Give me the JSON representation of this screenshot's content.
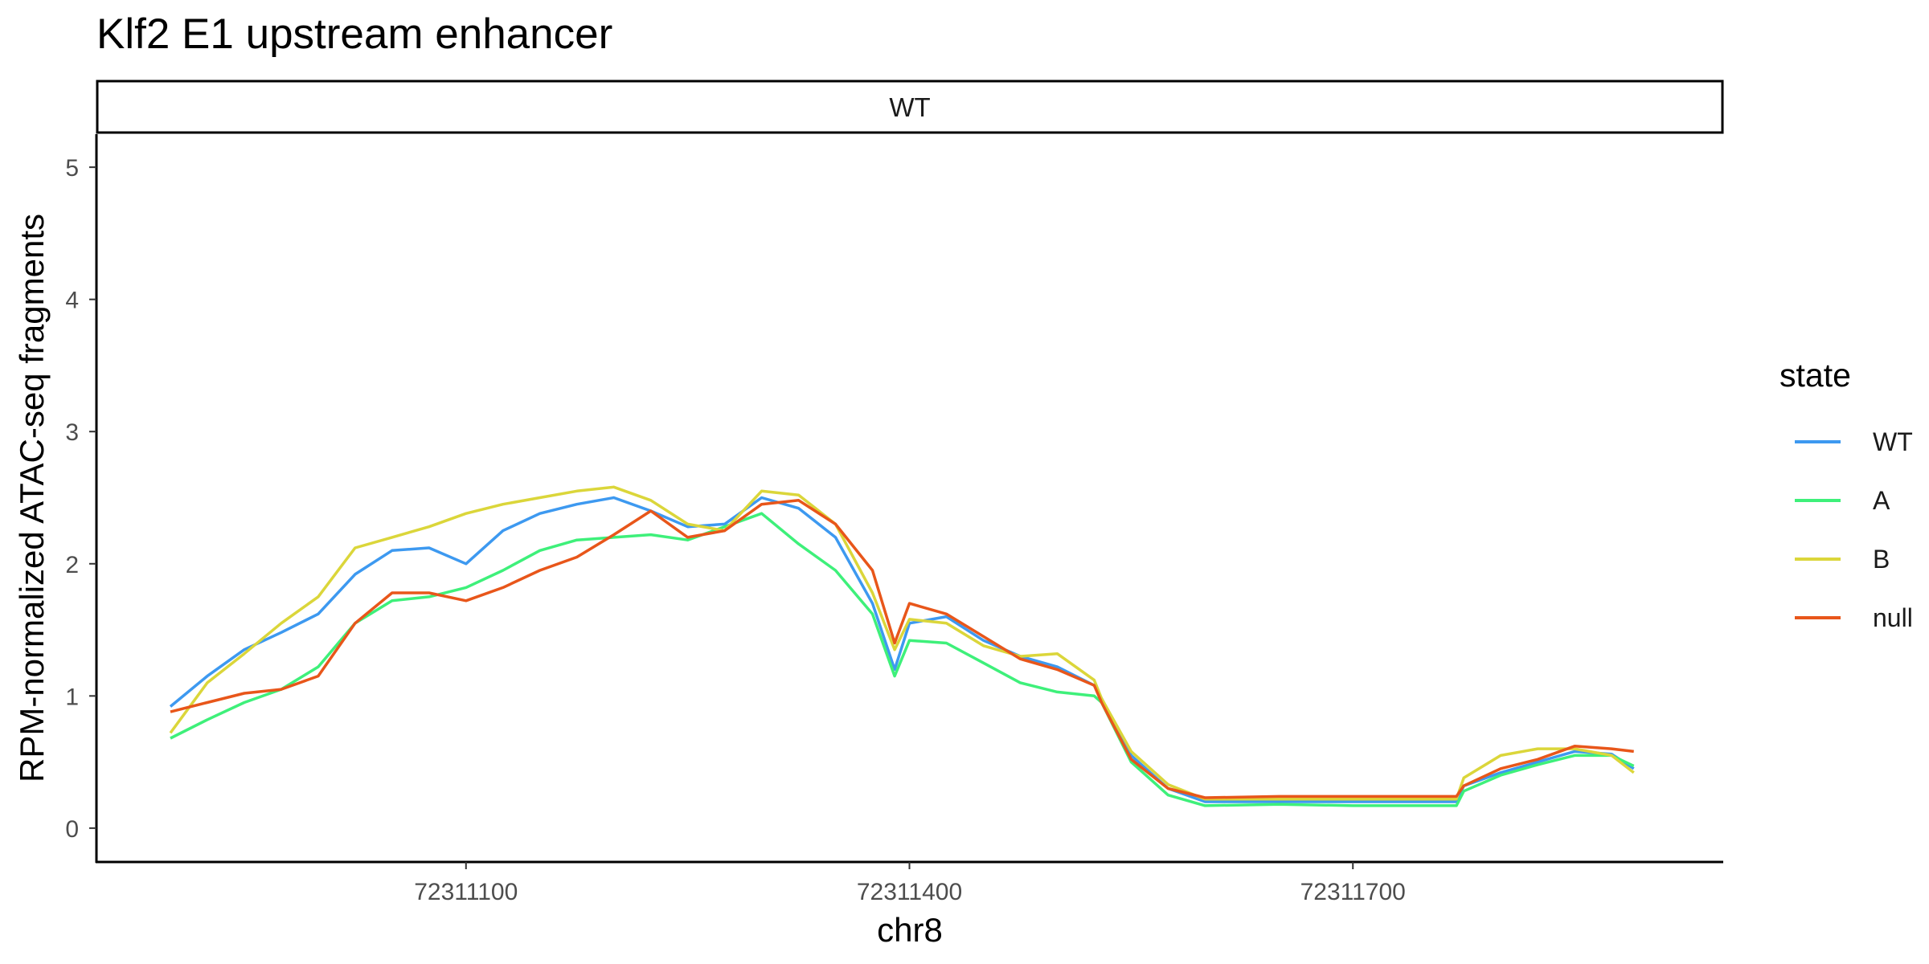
{
  "chart_data": {
    "type": "line",
    "title": "Klf2 E1 upstream enhancer",
    "facet": "WT",
    "xlabel": "chr8",
    "ylabel": "RPM-normalized ATAC-seq fragments",
    "xlim": [
      72310850,
      72311950
    ],
    "ylim": [
      -0.25,
      5.25
    ],
    "xticks": [
      72311100,
      72311400,
      72311700
    ],
    "yticks": [
      0,
      1,
      2,
      3,
      4,
      5
    ],
    "grid": false,
    "legend": {
      "title": "state",
      "position": "right"
    },
    "x": [
      72310900,
      72310925,
      72310950,
      72310975,
      72311000,
      72311025,
      72311050,
      72311075,
      72311100,
      72311125,
      72311150,
      72311175,
      72311200,
      72311225,
      72311250,
      72311275,
      72311300,
      72311325,
      72311350,
      72311375,
      72311390,
      72311400,
      72311425,
      72311450,
      72311475,
      72311500,
      72311525,
      72311530,
      72311550,
      72311575,
      72311600,
      72311650,
      72311700,
      72311750,
      72311770,
      72311775,
      72311800,
      72311825,
      72311850,
      72311875,
      72311890
    ],
    "series": [
      {
        "name": "WT",
        "color": "#3d99f0",
        "values": [
          0.92,
          1.15,
          1.35,
          1.48,
          1.62,
          1.92,
          2.1,
          2.12,
          2.0,
          2.25,
          2.38,
          2.45,
          2.5,
          2.4,
          2.28,
          2.3,
          2.5,
          2.42,
          2.2,
          1.7,
          1.2,
          1.55,
          1.6,
          1.42,
          1.3,
          1.22,
          1.08,
          0.98,
          0.55,
          0.3,
          0.2,
          0.2,
          0.2,
          0.2,
          0.2,
          0.32,
          0.42,
          0.5,
          0.58,
          0.56,
          0.45
        ]
      },
      {
        "name": "A",
        "color": "#3ef07a",
        "values": [
          0.68,
          0.82,
          0.95,
          1.05,
          1.22,
          1.55,
          1.72,
          1.75,
          1.82,
          1.95,
          2.1,
          2.18,
          2.2,
          2.22,
          2.18,
          2.28,
          2.38,
          2.15,
          1.95,
          1.62,
          1.15,
          1.42,
          1.4,
          1.25,
          1.1,
          1.03,
          1.0,
          0.95,
          0.5,
          0.25,
          0.17,
          0.18,
          0.17,
          0.17,
          0.17,
          0.28,
          0.4,
          0.48,
          0.55,
          0.55,
          0.47
        ]
      },
      {
        "name": "B",
        "color": "#dbd63a",
        "values": [
          0.72,
          1.1,
          1.32,
          1.55,
          1.75,
          2.12,
          2.2,
          2.28,
          2.38,
          2.45,
          2.5,
          2.55,
          2.58,
          2.48,
          2.3,
          2.25,
          2.55,
          2.52,
          2.3,
          1.78,
          1.35,
          1.58,
          1.55,
          1.38,
          1.3,
          1.32,
          1.12,
          0.98,
          0.58,
          0.33,
          0.22,
          0.22,
          0.22,
          0.22,
          0.22,
          0.38,
          0.55,
          0.6,
          0.6,
          0.55,
          0.42
        ]
      },
      {
        "name": "null",
        "color": "#e8561a",
        "values": [
          0.88,
          0.95,
          1.02,
          1.05,
          1.15,
          1.55,
          1.78,
          1.78,
          1.72,
          1.82,
          1.95,
          2.05,
          2.22,
          2.4,
          2.2,
          2.25,
          2.45,
          2.48,
          2.3,
          1.95,
          1.4,
          1.7,
          1.62,
          1.45,
          1.28,
          1.2,
          1.08,
          0.95,
          0.52,
          0.3,
          0.23,
          0.24,
          0.24,
          0.24,
          0.24,
          0.32,
          0.45,
          0.52,
          0.62,
          0.6,
          0.58
        ]
      }
    ]
  }
}
